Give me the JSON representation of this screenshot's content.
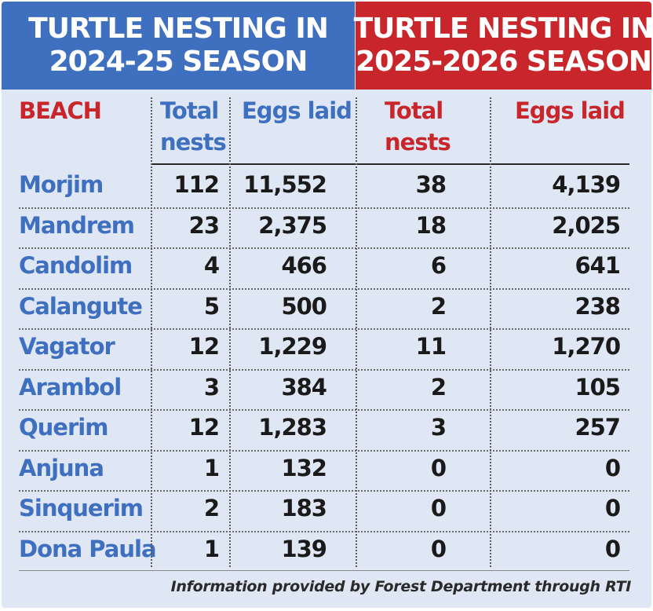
{
  "chart_data": {
    "type": "table",
    "season_headers": [
      {
        "line1": "TURTLE NESTING IN",
        "line2": "2024-25 SEASON",
        "color": "#3f6fbf"
      },
      {
        "line1": "TURTLE NESTING IN",
        "line2": "2025-2026 SEASON",
        "color": "#c8262b"
      }
    ],
    "columns": {
      "beach": "BEACH",
      "nests_line1": "Total",
      "nests_line2": "nests",
      "eggs": "Eggs laid"
    },
    "rows": [
      {
        "beach": "Morjim",
        "nests_2024": "112",
        "eggs_2024": "11,552",
        "nests_2025": "38",
        "eggs_2025": "4,139"
      },
      {
        "beach": "Mandrem",
        "nests_2024": "23",
        "eggs_2024": "2,375",
        "nests_2025": "18",
        "eggs_2025": "2,025"
      },
      {
        "beach": "Candolim",
        "nests_2024": "4",
        "eggs_2024": "466",
        "nests_2025": "6",
        "eggs_2025": "641"
      },
      {
        "beach": "Calangute",
        "nests_2024": "5",
        "eggs_2024": "500",
        "nests_2025": "2",
        "eggs_2025": "238"
      },
      {
        "beach": "Vagator",
        "nests_2024": "12",
        "eggs_2024": "1,229",
        "nests_2025": "11",
        "eggs_2025": "1,270"
      },
      {
        "beach": "Arambol",
        "nests_2024": "3",
        "eggs_2024": "384",
        "nests_2025": "2",
        "eggs_2025": "105"
      },
      {
        "beach": "Querim",
        "nests_2024": "12",
        "eggs_2024": "1,283",
        "nests_2025": "3",
        "eggs_2025": "257"
      },
      {
        "beach": "Anjuna",
        "nests_2024": "1",
        "eggs_2024": "132",
        "nests_2025": "0",
        "eggs_2025": "0"
      },
      {
        "beach": "Sinquerim",
        "nests_2024": "2",
        "eggs_2024": "183",
        "nests_2025": "0",
        "eggs_2025": "0"
      },
      {
        "beach": "Dona Paula",
        "nests_2024": "1",
        "eggs_2024": "139",
        "nests_2025": "0",
        "eggs_2025": "0"
      }
    ],
    "footnote": "Information provided by Forest Department through RTI",
    "colors": {
      "blue": "#3f6fbf",
      "red": "#c8262b",
      "background": "#dfe6f4"
    }
  }
}
